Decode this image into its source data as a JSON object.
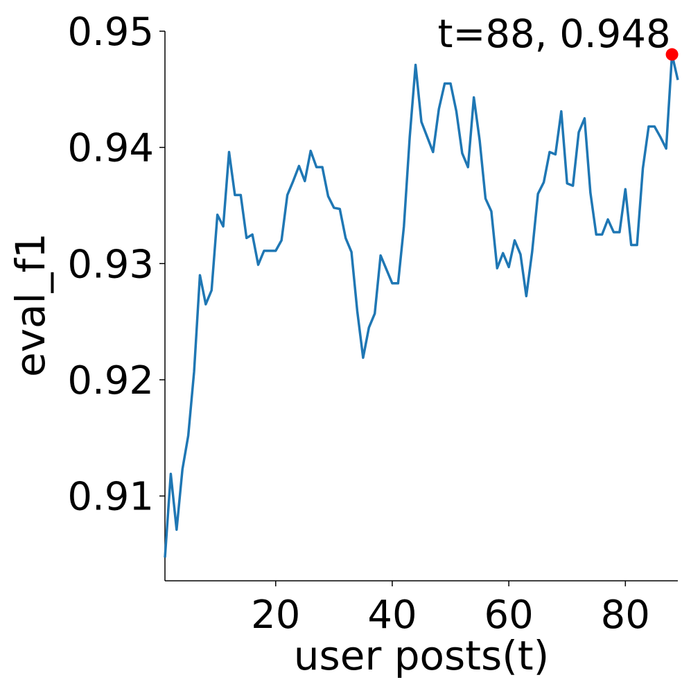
{
  "chart_data": {
    "type": "line",
    "xlabel": "user posts(t)",
    "ylabel": "eval_f1",
    "x": [
      1,
      2,
      3,
      4,
      5,
      6,
      7,
      8,
      9,
      10,
      11,
      12,
      13,
      14,
      15,
      16,
      17,
      18,
      19,
      20,
      21,
      22,
      23,
      24,
      25,
      26,
      27,
      28,
      29,
      30,
      31,
      32,
      33,
      34,
      35,
      36,
      37,
      38,
      39,
      40,
      41,
      42,
      43,
      44,
      45,
      46,
      47,
      48,
      49,
      50,
      51,
      52,
      53,
      54,
      55,
      56,
      57,
      58,
      59,
      60,
      61,
      62,
      63,
      64,
      65,
      66,
      67,
      68,
      69,
      70,
      71,
      72,
      73,
      74,
      75,
      76,
      77,
      78,
      79,
      80,
      81,
      82,
      83,
      84,
      85,
      86,
      87,
      88,
      89
    ],
    "series": [
      {
        "color": "#1f77b4",
        "values": [
          0.9047,
          0.9119,
          0.9071,
          0.9123,
          0.9152,
          0.9207,
          0.929,
          0.9265,
          0.9277,
          0.9342,
          0.9332,
          0.9396,
          0.9359,
          0.9359,
          0.9322,
          0.9325,
          0.9299,
          0.9311,
          0.9311,
          0.9311,
          0.932,
          0.9359,
          0.9371,
          0.9384,
          0.9371,
          0.9397,
          0.9383,
          0.9383,
          0.9358,
          0.9348,
          0.9347,
          0.9322,
          0.931,
          0.9259,
          0.9219,
          0.9245,
          0.9257,
          0.9307,
          0.9295,
          0.9283,
          0.9283,
          0.9332,
          0.9409,
          0.9471,
          0.9422,
          0.9409,
          0.9396,
          0.9433,
          0.9455,
          0.9455,
          0.9431,
          0.9395,
          0.9383,
          0.9443,
          0.9406,
          0.9356,
          0.9345,
          0.9296,
          0.9309,
          0.9297,
          0.932,
          0.9308,
          0.9272,
          0.931,
          0.936,
          0.937,
          0.9396,
          0.9394,
          0.9431,
          0.9369,
          0.9367,
          0.9413,
          0.9425,
          0.9361,
          0.9325,
          0.9325,
          0.9338,
          0.9327,
          0.9327,
          0.9364,
          0.9316,
          0.9316,
          0.9382,
          0.9418,
          0.9418,
          0.9409,
          0.9399,
          0.948,
          0.9458
        ]
      }
    ],
    "highlight": {
      "x": 88,
      "y": 0.948,
      "color": "#ff0000",
      "label": "t=88, 0.948"
    },
    "xlim": [
      1,
      89
    ],
    "xticks": [
      20,
      40,
      60,
      80
    ],
    "ylim": [
      0.9027,
      0.95
    ],
    "yticks": [
      0.91,
      0.92,
      0.93,
      0.94,
      0.95
    ],
    "grid": false
  }
}
